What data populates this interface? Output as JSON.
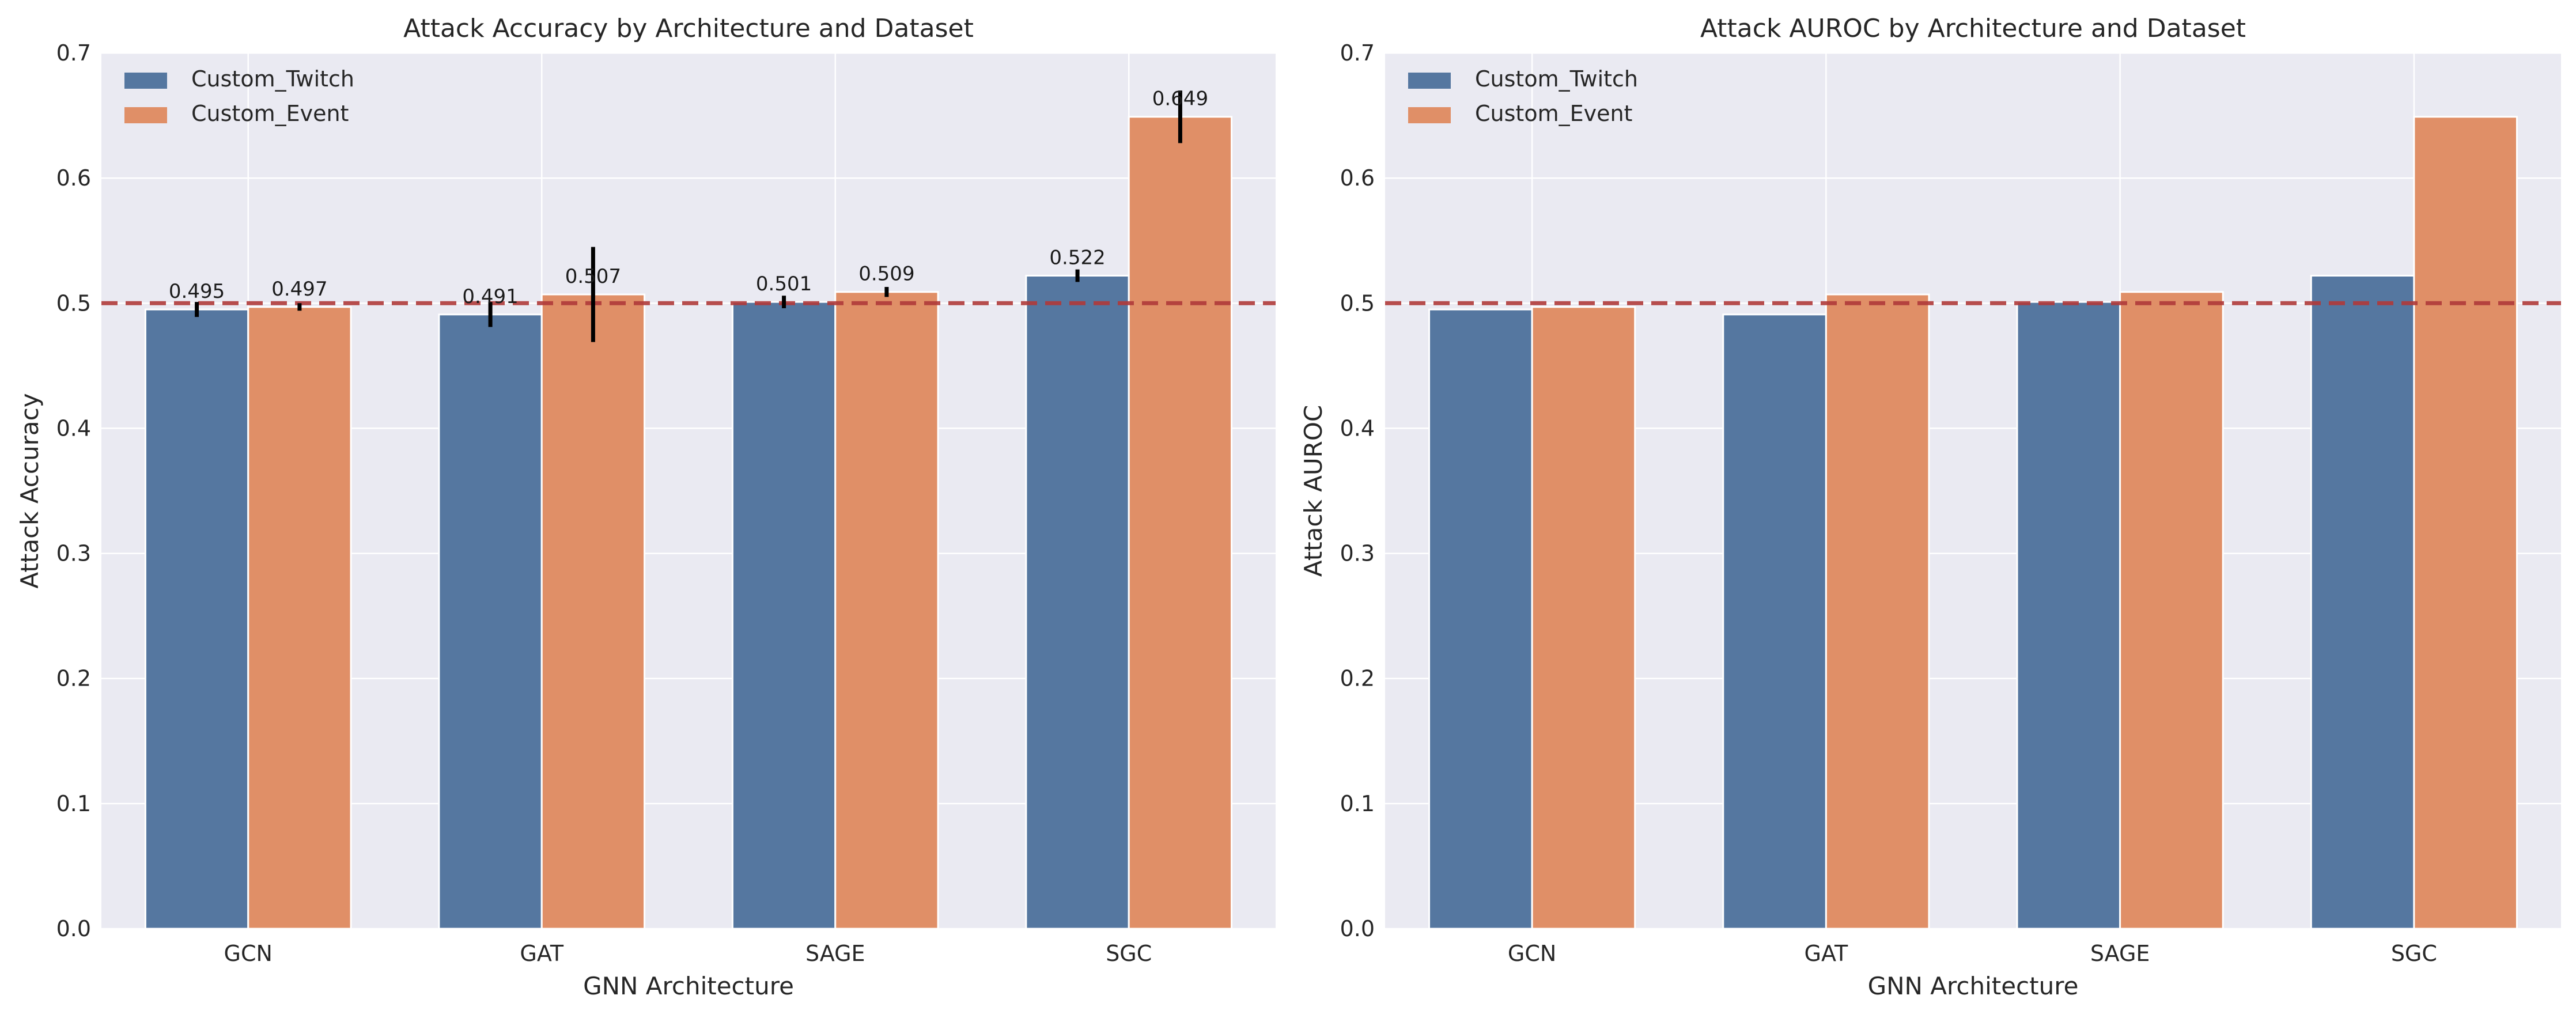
{
  "colors": {
    "series_twitch": "#5577a0",
    "series_event": "#e08f67",
    "reference_line": "#b03a3a",
    "plot_background": "#eaeaf2",
    "grid": "#ffffff",
    "error_bar": "#000000"
  },
  "chart_data": [
    {
      "type": "bar",
      "title": "Attack Accuracy by Architecture and Dataset",
      "xlabel": "GNN Architecture",
      "ylabel": "Attack Accuracy",
      "categories": [
        "GCN",
        "GAT",
        "SAGE",
        "SGC"
      ],
      "ylim": [
        0,
        0.7
      ],
      "yticks": [
        0.0,
        0.1,
        0.2,
        0.3,
        0.4,
        0.5,
        0.6,
        0.7
      ],
      "ytick_labels": [
        "0.0",
        "0.1",
        "0.2",
        "0.3",
        "0.4",
        "0.5",
        "0.6",
        "0.7"
      ],
      "reference_line": 0.5,
      "legend_position": "top-left",
      "grid": true,
      "series": [
        {
          "name": "Custom_Twitch",
          "values": [
            0.495,
            0.491,
            0.501,
            0.522
          ],
          "errors": [
            0.006,
            0.01,
            0.005,
            0.005
          ],
          "labels": [
            "0.495",
            "0.491",
            "0.501",
            "0.522"
          ]
        },
        {
          "name": "Custom_Event",
          "values": [
            0.497,
            0.507,
            0.509,
            0.649
          ],
          "errors": [
            0.003,
            0.038,
            0.004,
            0.021
          ],
          "labels": [
            "0.497",
            "0.507",
            "0.509",
            "0.649"
          ]
        }
      ]
    },
    {
      "type": "bar",
      "title": "Attack AUROC by Architecture and Dataset",
      "xlabel": "GNN Architecture",
      "ylabel": "Attack AUROC",
      "categories": [
        "GCN",
        "GAT",
        "SAGE",
        "SGC"
      ],
      "ylim": [
        0,
        0.7
      ],
      "yticks": [
        0.0,
        0.1,
        0.2,
        0.3,
        0.4,
        0.5,
        0.6,
        0.7
      ],
      "ytick_labels": [
        "0.0",
        "0.1",
        "0.2",
        "0.3",
        "0.4",
        "0.5",
        "0.6",
        "0.7"
      ],
      "reference_line": 0.5,
      "legend_position": "top-left",
      "grid": true,
      "series": [
        {
          "name": "Custom_Twitch",
          "values": [
            0.495,
            0.491,
            0.501,
            0.522
          ]
        },
        {
          "name": "Custom_Event",
          "values": [
            0.497,
            0.507,
            0.509,
            0.649
          ]
        }
      ]
    }
  ]
}
